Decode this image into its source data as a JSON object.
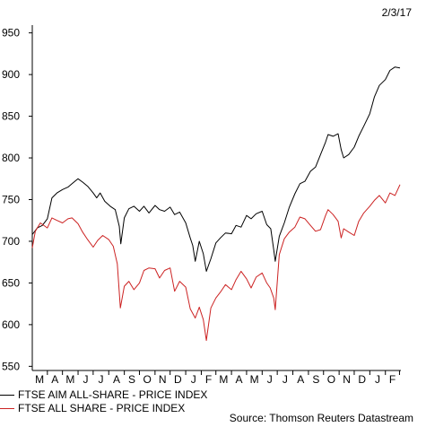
{
  "chart_data": {
    "type": "line",
    "date_label": "2/3/17",
    "source": "Source: Thomson Reuters Datastream",
    "months": [
      "M",
      "A",
      "M",
      "J",
      "J",
      "A",
      "S",
      "O",
      "N",
      "D",
      "J",
      "F",
      "M",
      "A",
      "M",
      "J",
      "J",
      "A",
      "S",
      "O",
      "N",
      "D",
      "J",
      "F"
    ],
    "y_ticks": [
      550,
      600,
      650,
      700,
      750,
      800,
      850,
      900,
      950
    ],
    "ylim": [
      545,
      955
    ],
    "x_range": [
      "2015-03-02",
      "2017-03-02"
    ],
    "grid": false,
    "legend_position": "bottom-left",
    "series": [
      {
        "name": "FTSE AIM ALL-SHARE - PRICE INDEX",
        "color": "#000000",
        "points": [
          [
            "2015-03-02",
            708
          ],
          [
            "2015-03-12",
            716
          ],
          [
            "2015-03-22",
            719
          ],
          [
            "2015-04-01",
            727
          ],
          [
            "2015-04-10",
            752
          ],
          [
            "2015-04-20",
            758
          ],
          [
            "2015-05-01",
            762
          ],
          [
            "2015-05-12",
            765
          ],
          [
            "2015-05-20",
            769
          ],
          [
            "2015-06-01",
            775
          ],
          [
            "2015-06-10",
            771
          ],
          [
            "2015-06-20",
            766
          ],
          [
            "2015-07-01",
            758
          ],
          [
            "2015-07-08",
            752
          ],
          [
            "2015-07-15",
            758
          ],
          [
            "2015-07-24",
            748
          ],
          [
            "2015-08-04",
            742
          ],
          [
            "2015-08-14",
            738
          ],
          [
            "2015-08-22",
            718
          ],
          [
            "2015-08-25",
            697
          ],
          [
            "2015-09-01",
            728
          ],
          [
            "2015-09-10",
            739
          ],
          [
            "2015-09-20",
            742
          ],
          [
            "2015-10-01",
            736
          ],
          [
            "2015-10-10",
            742
          ],
          [
            "2015-10-20",
            734
          ],
          [
            "2015-11-01",
            743
          ],
          [
            "2015-11-10",
            738
          ],
          [
            "2015-11-20",
            736
          ],
          [
            "2015-12-01",
            741
          ],
          [
            "2015-12-10",
            732
          ],
          [
            "2015-12-20",
            735
          ],
          [
            "2016-01-01",
            722
          ],
          [
            "2016-01-10",
            704
          ],
          [
            "2016-01-15",
            695
          ],
          [
            "2016-01-20",
            676
          ],
          [
            "2016-01-28",
            700
          ],
          [
            "2016-02-05",
            685
          ],
          [
            "2016-02-11",
            664
          ],
          [
            "2016-02-20",
            679
          ],
          [
            "2016-03-01",
            698
          ],
          [
            "2016-03-10",
            704
          ],
          [
            "2016-03-20",
            710
          ],
          [
            "2016-04-01",
            709
          ],
          [
            "2016-04-10",
            719
          ],
          [
            "2016-04-20",
            717
          ],
          [
            "2016-05-01",
            731
          ],
          [
            "2016-05-10",
            727
          ],
          [
            "2016-05-20",
            733
          ],
          [
            "2016-06-01",
            736
          ],
          [
            "2016-06-10",
            720
          ],
          [
            "2016-06-18",
            715
          ],
          [
            "2016-06-24",
            690
          ],
          [
            "2016-06-27",
            676
          ],
          [
            "2016-07-05",
            706
          ],
          [
            "2016-07-15",
            722
          ],
          [
            "2016-07-25",
            741
          ],
          [
            "2016-08-05",
            757
          ],
          [
            "2016-08-15",
            769
          ],
          [
            "2016-08-25",
            772
          ],
          [
            "2016-09-05",
            784
          ],
          [
            "2016-09-15",
            789
          ],
          [
            "2016-09-25",
            804
          ],
          [
            "2016-10-05",
            819
          ],
          [
            "2016-10-10",
            828
          ],
          [
            "2016-10-20",
            826
          ],
          [
            "2016-10-30",
            829
          ],
          [
            "2016-11-05",
            810
          ],
          [
            "2016-11-10",
            800
          ],
          [
            "2016-11-20",
            804
          ],
          [
            "2016-12-01",
            813
          ],
          [
            "2016-12-10",
            826
          ],
          [
            "2016-12-20",
            838
          ],
          [
            "2017-01-01",
            853
          ],
          [
            "2017-01-10",
            873
          ],
          [
            "2017-01-20",
            887
          ],
          [
            "2017-02-01",
            894
          ],
          [
            "2017-02-10",
            905
          ],
          [
            "2017-02-20",
            909
          ],
          [
            "2017-03-02",
            908
          ]
        ]
      },
      {
        "name": "FTSE ALL SHARE - PRICE INDEX",
        "color": "#cc2222",
        "points": [
          [
            "2015-03-02",
            692
          ],
          [
            "2015-03-08",
            712
          ],
          [
            "2015-03-18",
            722
          ],
          [
            "2015-04-01",
            716
          ],
          [
            "2015-04-10",
            728
          ],
          [
            "2015-04-20",
            725
          ],
          [
            "2015-05-01",
            722
          ],
          [
            "2015-05-12",
            727
          ],
          [
            "2015-05-20",
            728
          ],
          [
            "2015-06-01",
            721
          ],
          [
            "2015-06-10",
            711
          ],
          [
            "2015-06-20",
            702
          ],
          [
            "2015-07-01",
            693
          ],
          [
            "2015-07-10",
            701
          ],
          [
            "2015-07-20",
            707
          ],
          [
            "2015-08-01",
            702
          ],
          [
            "2015-08-10",
            694
          ],
          [
            "2015-08-18",
            673
          ],
          [
            "2015-08-24",
            620
          ],
          [
            "2015-09-01",
            646
          ],
          [
            "2015-09-10",
            652
          ],
          [
            "2015-09-20",
            642
          ],
          [
            "2015-10-01",
            650
          ],
          [
            "2015-10-10",
            665
          ],
          [
            "2015-10-20",
            668
          ],
          [
            "2015-11-01",
            667
          ],
          [
            "2015-11-10",
            656
          ],
          [
            "2015-11-20",
            665
          ],
          [
            "2015-12-01",
            668
          ],
          [
            "2015-12-10",
            640
          ],
          [
            "2015-12-20",
            652
          ],
          [
            "2016-01-01",
            645
          ],
          [
            "2016-01-10",
            619
          ],
          [
            "2016-01-20",
            608
          ],
          [
            "2016-01-28",
            621
          ],
          [
            "2016-02-05",
            606
          ],
          [
            "2016-02-11",
            581
          ],
          [
            "2016-02-20",
            620
          ],
          [
            "2016-03-01",
            632
          ],
          [
            "2016-03-10",
            639
          ],
          [
            "2016-03-20",
            648
          ],
          [
            "2016-04-01",
            642
          ],
          [
            "2016-04-10",
            654
          ],
          [
            "2016-04-20",
            664
          ],
          [
            "2016-05-01",
            655
          ],
          [
            "2016-05-10",
            644
          ],
          [
            "2016-05-20",
            657
          ],
          [
            "2016-06-01",
            662
          ],
          [
            "2016-06-10",
            650
          ],
          [
            "2016-06-17",
            644
          ],
          [
            "2016-06-24",
            632
          ],
          [
            "2016-06-27",
            618
          ],
          [
            "2016-07-05",
            684
          ],
          [
            "2016-07-15",
            703
          ],
          [
            "2016-07-25",
            711
          ],
          [
            "2016-08-05",
            717
          ],
          [
            "2016-08-15",
            729
          ],
          [
            "2016-08-25",
            727
          ],
          [
            "2016-09-05",
            719
          ],
          [
            "2016-09-15",
            712
          ],
          [
            "2016-09-25",
            714
          ],
          [
            "2016-10-05",
            731
          ],
          [
            "2016-10-10",
            738
          ],
          [
            "2016-10-20",
            732
          ],
          [
            "2016-10-30",
            724
          ],
          [
            "2016-11-05",
            704
          ],
          [
            "2016-11-10",
            715
          ],
          [
            "2016-11-20",
            711
          ],
          [
            "2016-12-01",
            707
          ],
          [
            "2016-12-10",
            724
          ],
          [
            "2016-12-20",
            734
          ],
          [
            "2017-01-01",
            742
          ],
          [
            "2017-01-10",
            749
          ],
          [
            "2017-01-20",
            755
          ],
          [
            "2017-02-01",
            746
          ],
          [
            "2017-02-10",
            758
          ],
          [
            "2017-02-20",
            755
          ],
          [
            "2017-03-02",
            768
          ]
        ]
      }
    ]
  }
}
